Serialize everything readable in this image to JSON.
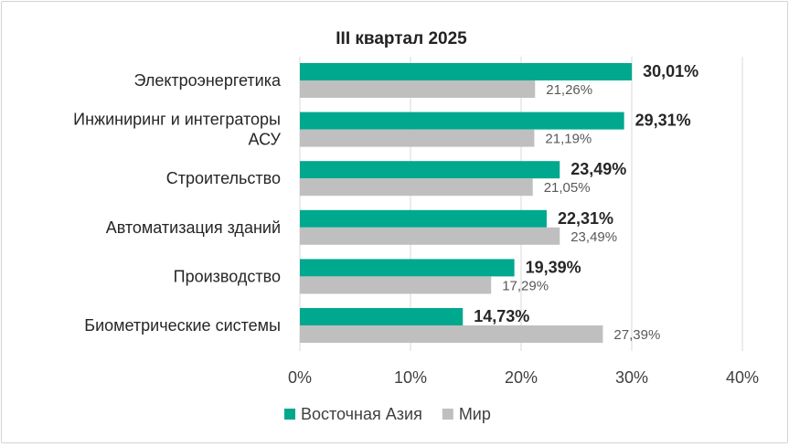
{
  "chart_data": {
    "type": "bar",
    "orientation": "horizontal",
    "title": "III квартал 2025",
    "categories": [
      "Электроэнергетика",
      "Инжиниринг и интеграторы АСУ",
      "Строительство",
      "Автоматизация зданий",
      "Производство",
      "Биометрические системы"
    ],
    "category_lines": [
      [
        "Электроэнергетика"
      ],
      [
        "Инжиниринг и интеграторы",
        "АСУ"
      ],
      [
        "Строительство"
      ],
      [
        "Автоматизация зданий"
      ],
      [
        "Производство"
      ],
      [
        "Биометрические системы"
      ]
    ],
    "series": [
      {
        "name": "Восточная Азия",
        "color": "#00A88E",
        "values": [
          30.01,
          29.31,
          23.49,
          22.31,
          19.39,
          14.73
        ],
        "labels": [
          "30,01%",
          "29,31%",
          "23,49%",
          "22,31%",
          "19,39%",
          "14,73%"
        ]
      },
      {
        "name": "Мир",
        "color": "#BFBFBF",
        "values": [
          21.26,
          21.19,
          21.05,
          23.49,
          17.29,
          27.39
        ],
        "labels": [
          "21,26%",
          "21,19%",
          "21,05%",
          "23,49%",
          "17,29%",
          "27,39%"
        ]
      }
    ],
    "xlim": [
      0,
      40
    ],
    "xticks": [
      0,
      10,
      20,
      30,
      40
    ],
    "xtick_labels": [
      "0%",
      "10%",
      "20%",
      "30%",
      "40%"
    ],
    "grid": "vertical",
    "legend_position": "bottom"
  }
}
